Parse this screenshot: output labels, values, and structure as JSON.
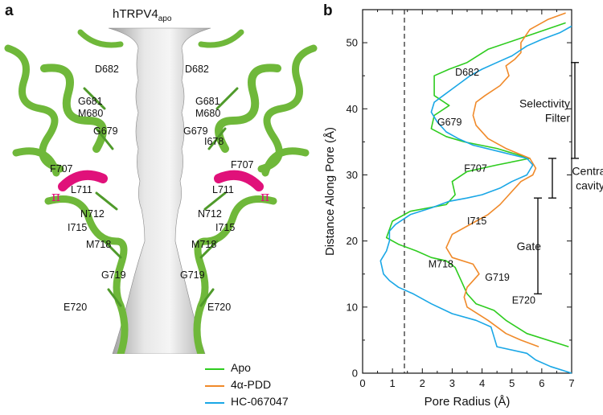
{
  "panel_a": {
    "letter": "a",
    "title_main": "hTRPV4",
    "title_sub": "apo",
    "labels_left": [
      "D682",
      "G681",
      "M680",
      "G679",
      "F707",
      "L711",
      "N712",
      "I715",
      "M718",
      "G719",
      "E720"
    ],
    "labels_right": [
      "D682",
      "G681",
      "M680",
      "G679",
      "I678",
      "F707",
      "L711",
      "N712",
      "I715",
      "M718",
      "G719",
      "E720"
    ],
    "pi_symbol": "π"
  },
  "panel_b": {
    "letter": "b"
  },
  "legend": {
    "items": [
      {
        "label": "Apo",
        "color": "#2ecc1f"
      },
      {
        "label": "4α-PDD",
        "color": "#f08a2a"
      },
      {
        "label": "HC-067047",
        "color": "#1aa7e6"
      }
    ]
  },
  "chart_data": {
    "type": "line",
    "xlabel": "Pore Radius (Å)",
    "ylabel": "Distance Along Pore (Å)",
    "xlim": [
      0,
      7
    ],
    "ylim": [
      0,
      55
    ],
    "xticks": [
      0,
      1,
      2,
      3,
      4,
      5,
      6,
      7
    ],
    "yticks": [
      0,
      10,
      20,
      30,
      40,
      50
    ],
    "reference_line": {
      "x": 1.4,
      "style": "dashed"
    },
    "series": [
      {
        "name": "Apo",
        "color": "#2ecc1f",
        "points": [
          [
            6.9,
            4
          ],
          [
            5.5,
            6
          ],
          [
            4.8,
            8
          ],
          [
            4.4,
            9.5
          ],
          [
            3.8,
            10.5
          ],
          [
            3.5,
            12
          ],
          [
            3.3,
            14
          ],
          [
            3.1,
            16
          ],
          [
            2.8,
            17
          ],
          [
            2.3,
            17.5
          ],
          [
            1.8,
            18.5
          ],
          [
            1.2,
            19.5
          ],
          [
            0.8,
            20.5
          ],
          [
            1.0,
            23
          ],
          [
            1.6,
            24.5
          ],
          [
            2.8,
            25.5
          ],
          [
            3.1,
            27
          ],
          [
            3.0,
            29
          ],
          [
            3.5,
            30.5
          ],
          [
            4.5,
            31.5
          ],
          [
            5.6,
            32.5
          ],
          [
            4.5,
            34
          ],
          [
            3.4,
            35
          ],
          [
            2.8,
            35.8
          ],
          [
            2.3,
            37
          ],
          [
            2.4,
            39
          ],
          [
            2.9,
            40.5
          ],
          [
            2.4,
            42
          ],
          [
            2.4,
            45
          ],
          [
            2.9,
            46
          ],
          [
            3.5,
            47
          ],
          [
            4.2,
            49
          ],
          [
            5.5,
            51
          ],
          [
            6.8,
            53
          ]
        ]
      },
      {
        "name": "4α-PDD",
        "color": "#f08a2a",
        "points": [
          [
            5.9,
            4
          ],
          [
            5.3,
            5
          ],
          [
            4.8,
            6
          ],
          [
            4.2,
            8
          ],
          [
            3.5,
            10
          ],
          [
            3.4,
            11.5
          ],
          [
            3.5,
            13
          ],
          [
            3.9,
            15
          ],
          [
            3.7,
            16.5
          ],
          [
            3.0,
            17.5
          ],
          [
            2.8,
            19
          ],
          [
            3.0,
            21
          ],
          [
            3.8,
            23
          ],
          [
            4.2,
            24
          ],
          [
            4.6,
            25.5
          ],
          [
            4.9,
            27
          ],
          [
            5.3,
            29
          ],
          [
            5.7,
            30
          ],
          [
            5.8,
            31
          ],
          [
            5.6,
            32.5
          ],
          [
            4.8,
            34
          ],
          [
            4.2,
            35.5
          ],
          [
            3.8,
            37.5
          ],
          [
            3.7,
            39
          ],
          [
            3.8,
            41
          ],
          [
            4.1,
            42
          ],
          [
            4.6,
            43.5
          ],
          [
            4.9,
            45
          ],
          [
            4.8,
            46.5
          ],
          [
            5.1,
            47.5
          ],
          [
            5.3,
            48.5
          ],
          [
            5.3,
            50
          ],
          [
            5.6,
            52
          ],
          [
            6.2,
            53.5
          ],
          [
            6.8,
            54.5
          ]
        ]
      },
      {
        "name": "HC-067047",
        "color": "#1aa7e6",
        "points": [
          [
            7.0,
            0
          ],
          [
            6.3,
            1
          ],
          [
            5.8,
            2
          ],
          [
            5.5,
            3
          ],
          [
            4.5,
            4
          ],
          [
            4.4,
            5.5
          ],
          [
            4.3,
            7
          ],
          [
            3.8,
            8
          ],
          [
            3.0,
            9
          ],
          [
            2.3,
            10.5
          ],
          [
            1.7,
            12
          ],
          [
            1.2,
            13
          ],
          [
            0.9,
            14
          ],
          [
            0.7,
            15
          ],
          [
            0.6,
            17
          ],
          [
            0.8,
            18.5
          ],
          [
            0.9,
            20
          ],
          [
            0.9,
            21.5
          ],
          [
            1.1,
            22.5
          ],
          [
            1.6,
            24
          ],
          [
            2.3,
            25
          ],
          [
            2.9,
            26
          ],
          [
            3.5,
            26.5
          ],
          [
            4.0,
            27
          ],
          [
            4.6,
            28
          ],
          [
            5.0,
            29
          ],
          [
            5.5,
            30
          ],
          [
            5.7,
            31.5
          ],
          [
            5.5,
            32.5
          ],
          [
            4.6,
            33.5
          ],
          [
            3.7,
            34.5
          ],
          [
            3.2,
            35.5
          ],
          [
            2.8,
            36.5
          ],
          [
            2.5,
            38
          ],
          [
            2.3,
            39.5
          ],
          [
            2.4,
            41
          ],
          [
            2.7,
            42
          ],
          [
            3.0,
            43
          ],
          [
            3.3,
            44
          ],
          [
            3.6,
            45
          ],
          [
            4.0,
            46
          ],
          [
            4.5,
            47
          ],
          [
            5.0,
            48
          ],
          [
            5.5,
            49.5
          ],
          [
            6.0,
            50.5
          ],
          [
            6.6,
            51.5
          ],
          [
            7.0,
            52.5
          ]
        ]
      }
    ],
    "annotations": [
      {
        "text": "D682",
        "x": 3.1,
        "y": 45
      },
      {
        "text": "G679",
        "x": 2.5,
        "y": 37.5
      },
      {
        "text": "F707",
        "x": 3.4,
        "y": 30.5
      },
      {
        "text": "I715",
        "x": 3.5,
        "y": 22.5
      },
      {
        "text": "M718",
        "x": 2.2,
        "y": 16
      },
      {
        "text": "G719",
        "x": 4.1,
        "y": 14
      },
      {
        "text": "E720",
        "x": 5.0,
        "y": 10.5
      }
    ],
    "regions": [
      {
        "label_lines": [
          "Selectivity",
          "Filter"
        ],
        "y_range": [
          32.5,
          47
        ]
      },
      {
        "label_lines": [
          "Central",
          "cavity"
        ],
        "y_range": [
          26.5,
          32.5
        ]
      },
      {
        "label_lines": [
          "Gate"
        ],
        "y_range": [
          12,
          26.5
        ]
      }
    ]
  }
}
